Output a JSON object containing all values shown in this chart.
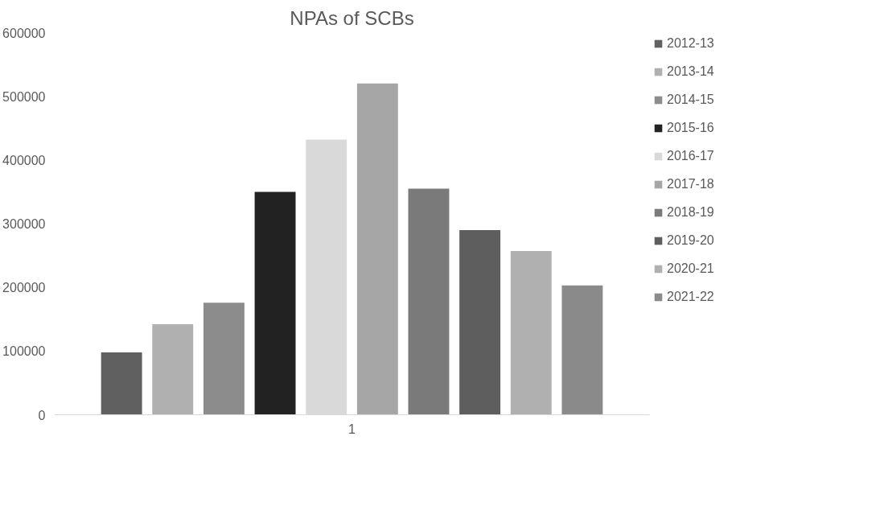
{
  "chart_data": {
    "type": "bar",
    "title": "NPAs of SCBs",
    "categories": [
      "1"
    ],
    "series": [
      {
        "name": "2012-13",
        "color": "#606060",
        "values": [
          98000
        ]
      },
      {
        "name": "2013-14",
        "color": "#b0b0b0",
        "values": [
          142000
        ]
      },
      {
        "name": "2014-15",
        "color": "#8c8c8c",
        "values": [
          176000
        ]
      },
      {
        "name": "2015-16",
        "color": "#222222",
        "values": [
          350000
        ]
      },
      {
        "name": "2016-17",
        "color": "#d9d9d9",
        "values": [
          432000
        ]
      },
      {
        "name": "2017-18",
        "color": "#a6a6a6",
        "values": [
          520000
        ]
      },
      {
        "name": "2018-19",
        "color": "#7a7a7a",
        "values": [
          355000
        ]
      },
      {
        "name": "2019-20",
        "color": "#5e5e5e",
        "values": [
          290000
        ]
      },
      {
        "name": "2020-21",
        "color": "#b0b0b0",
        "values": [
          257000
        ]
      },
      {
        "name": "2021-22",
        "color": "#8a8a8a",
        "values": [
          203000
        ]
      }
    ],
    "ylim": [
      0,
      600000
    ],
    "yticks": [
      0,
      100000,
      200000,
      300000,
      400000,
      500000,
      600000
    ],
    "grid": false,
    "legend": "right"
  }
}
